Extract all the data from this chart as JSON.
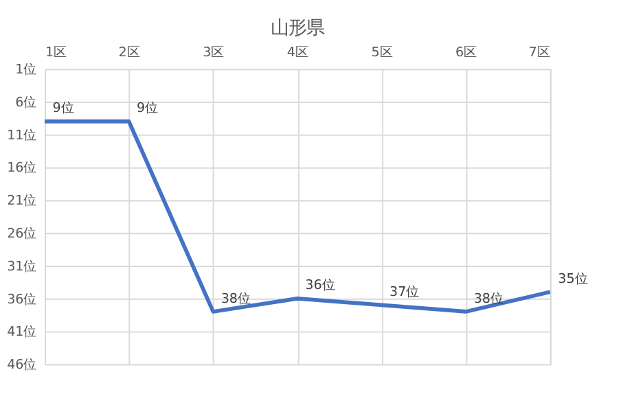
{
  "chart_data": {
    "type": "line",
    "title": "山形県",
    "categories": [
      "1区",
      "2区",
      "3区",
      "4区",
      "5区",
      "6区",
      "7区"
    ],
    "series": [
      {
        "color": "#4472c4",
        "values": [
          9,
          9,
          38,
          36,
          37,
          38,
          35
        ],
        "value_labels": [
          "9位",
          "9位",
          "38位",
          "36位",
          "37位",
          "38位",
          "35位"
        ]
      }
    ],
    "ylim": [
      46,
      1
    ],
    "yticks": [
      {
        "value": 1,
        "label": "1位"
      },
      {
        "value": 6,
        "label": "6位"
      },
      {
        "value": 11,
        "label": "11位"
      },
      {
        "value": 16,
        "label": "16位"
      },
      {
        "value": 21,
        "label": "21位"
      },
      {
        "value": 26,
        "label": "26位"
      },
      {
        "value": 31,
        "label": "31位"
      },
      {
        "value": 36,
        "label": "36位"
      },
      {
        "value": 41,
        "label": "41位"
      },
      {
        "value": 46,
        "label": "46位"
      }
    ],
    "grid": true,
    "marker": "none",
    "line_style": "solid"
  }
}
